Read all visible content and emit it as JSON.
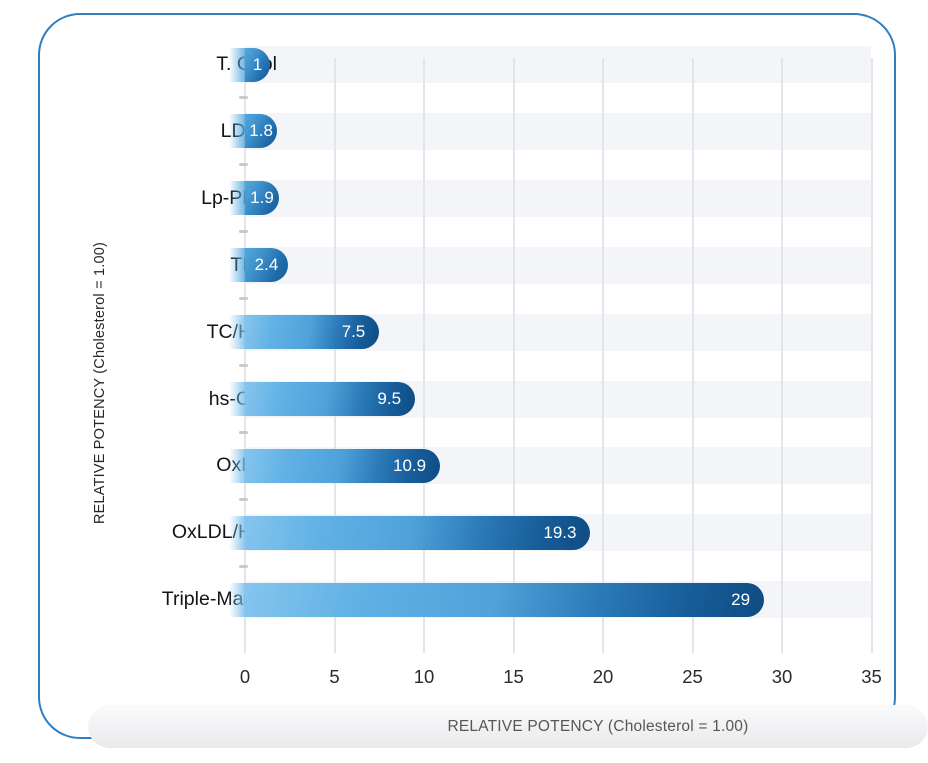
{
  "chart_data": {
    "type": "bar",
    "orientation": "horizontal",
    "title": "",
    "categories": [
      "T. Chol",
      "LDL-C",
      "Lp-PLA2",
      "TRIG",
      "TC/HDL",
      "hs-CRP",
      "OxLDL",
      "OxLDL/HDL",
      "Triple-Marker"
    ],
    "values": [
      1,
      1.8,
      1.9,
      2.4,
      7.5,
      9.5,
      10.9,
      19.3,
      29
    ],
    "value_labels": [
      "1",
      "1.8",
      "1.9",
      "2.4",
      "7.5",
      "9.5",
      "10.9",
      "19.3",
      "29"
    ],
    "xlabel": "RELATIVE POTENCY (Cholesterol = 1.00)",
    "ylabel": "RELATIVE POTENCY (Cholesterol = 1.00)",
    "xlim": [
      0,
      35
    ],
    "x_ticks": [
      0,
      5,
      10,
      15,
      20,
      25,
      30,
      35
    ],
    "grid": true,
    "legend": false,
    "row_bands": true
  },
  "colors": {
    "frame_border": "#2f7fc0",
    "bar_gradient_light": "#85c5ee",
    "bar_gradient_mid": "#2b7ab7",
    "bar_gradient_dark": "#0f4c82",
    "small_bar_light": "#55a8dd",
    "small_bar_dark": "#135a93",
    "row_band": "#f4f5f8",
    "gridline": "#e3e5e9",
    "value_label_text": "#ffffff",
    "category_text": "#141414",
    "tick_text": "#2b2b2b",
    "banner_background": "#eceded",
    "banner_text": "#575757",
    "background": "#ffffff"
  }
}
